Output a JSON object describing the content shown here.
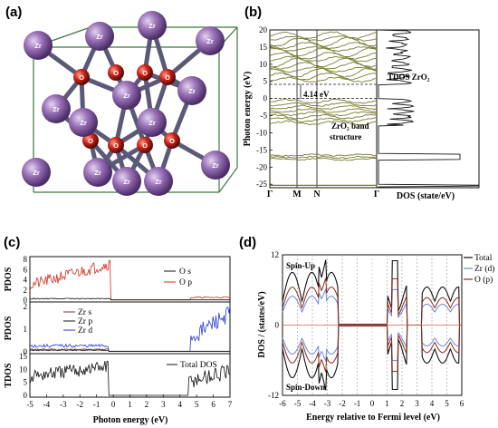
{
  "panels": {
    "a": {
      "label": "(a)"
    },
    "b": {
      "label": "(b)"
    },
    "c": {
      "label": "(c)"
    },
    "d": {
      "label": "(d)"
    }
  },
  "crystal": {
    "zr_label": "Zr",
    "o_label": "O",
    "zr_color": "#9b72b8",
    "o_color": "#c8221a",
    "bond_color": "#5a5a78",
    "cell_edge_color": "#3a7a3a"
  },
  "colors": {
    "band": "#7a7a30",
    "black": "#111111",
    "red": "#d03020",
    "blue": "#2a3ad8",
    "zr_d_line": "#6a88d8",
    "o_p_line": "#8a2a1a"
  },
  "chart_data": [
    {
      "type": "line",
      "panel": "b-left",
      "title": "",
      "ylabel": "Photon energy (eV)",
      "ylim": [
        -26,
        20
      ],
      "yticks": [
        "20",
        "15",
        "10",
        "5",
        "0",
        "-5",
        "-10",
        "-15",
        "-20",
        "-25"
      ],
      "kpoints": [
        "Γ",
        "M",
        "N",
        "Γ"
      ],
      "annotations": {
        "gap": "4.14 eV",
        "band_label_1": "ZrO₂ band",
        "band_label_2": "structure"
      },
      "gap_ev": 4.14,
      "valence_top_ev": 0,
      "conduction_bottom_ev": 4.14
    },
    {
      "type": "line",
      "panel": "b-right",
      "xlabel": "DOS (state/eV)",
      "series": [
        {
          "name": "TDOS ZrO₂"
        }
      ]
    },
    {
      "type": "area",
      "panel": "c",
      "xlabel": "Photon energy (eV)",
      "xlim": [
        -5,
        7
      ],
      "xticks": [
        "-5",
        "-4",
        "-3",
        "-2",
        "-1",
        "0",
        "1",
        "2",
        "3",
        "4",
        "5",
        "6",
        "7"
      ],
      "subplots": [
        {
          "ylabel": "PDOS",
          "yticks": [
            "8",
            "6",
            "4",
            "2",
            "0"
          ],
          "series": [
            {
              "name": "O s"
            },
            {
              "name": "O p"
            }
          ]
        },
        {
          "ylabel": "PDOS",
          "yticks": [
            "2",
            "1",
            "0"
          ],
          "series": [
            {
              "name": "Zr s"
            },
            {
              "name": "Zr p"
            },
            {
              "name": "Zr d"
            }
          ]
        },
        {
          "ylabel": "TDOS",
          "yticks": [
            "15",
            "10",
            "5",
            "0"
          ],
          "series": [
            {
              "name": "Total DOS"
            }
          ]
        }
      ]
    },
    {
      "type": "line",
      "panel": "d",
      "xlabel": "Energy relative to Fermi level (eV)",
      "ylabel": "DOS / (states/eV)",
      "xlim": [
        -6,
        6
      ],
      "ylim": [
        -12,
        12
      ],
      "xticks": [
        "-6",
        "-5",
        "-4",
        "-3",
        "-2",
        "-1",
        "0",
        "1",
        "2",
        "3",
        "4",
        "5",
        "6"
      ],
      "yticks": [
        "12",
        "0",
        "-12"
      ],
      "spin_up_label": "Spin-Up",
      "spin_down_label": "Spin-Down",
      "series": [
        {
          "name": "Total"
        },
        {
          "name": "Zr (d)"
        },
        {
          "name": "O (p)"
        }
      ]
    }
  ]
}
